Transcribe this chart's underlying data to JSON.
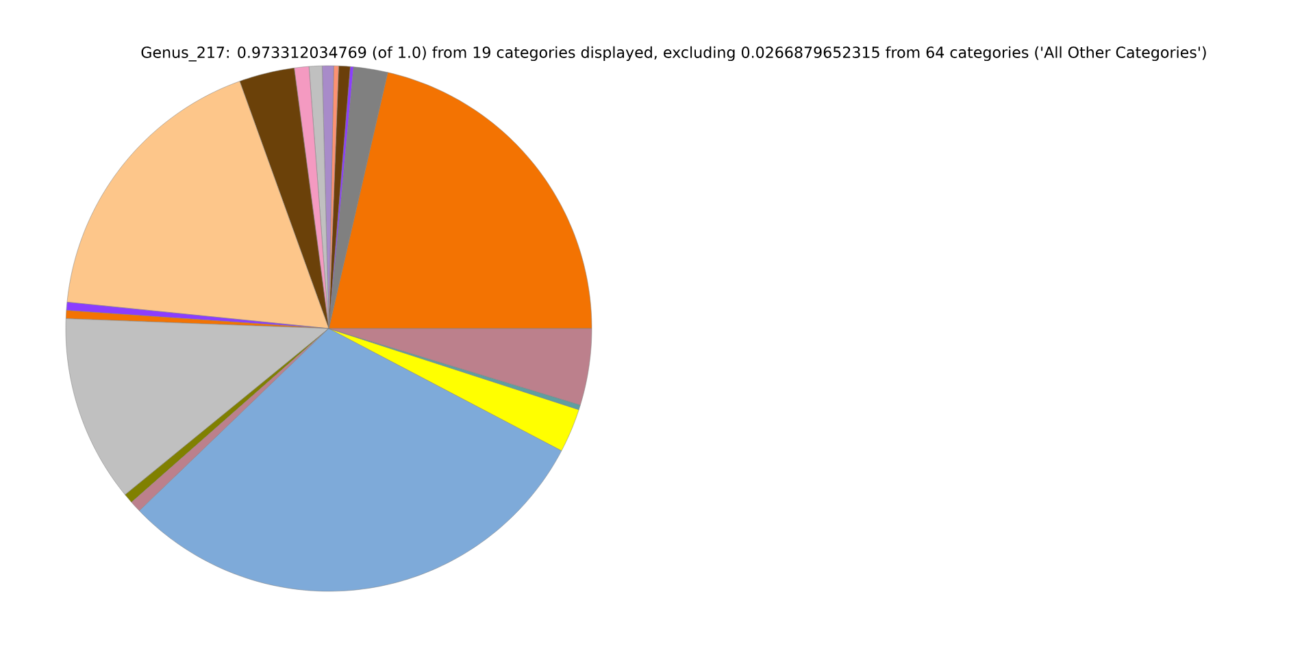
{
  "chart_data": {
    "type": "pie",
    "title": "Genus_217: 0.973312034769 (of 1.0) from 19 categories displayed, excluding 0.0266879652315 from 64 categories ('All Other Categories')",
    "categories": [
      null,
      null,
      null,
      null,
      null,
      null,
      null,
      null,
      null,
      null,
      null,
      null,
      null,
      null,
      null,
      null,
      null,
      null,
      null
    ],
    "values": [
      21.4,
      2.1,
      0.2,
      0.7,
      0.3,
      0.7,
      0.8,
      0.9,
      3.4,
      17.9,
      0.5,
      0.5,
      11.5,
      0.6,
      0.7,
      30.1,
      2.7,
      0.3,
      4.7
    ],
    "colors": [
      "#f37302",
      "#808080",
      "#8b3dff",
      "#6b3f0a",
      "#fc9272",
      "#a88bc9",
      "#c0c0c0",
      "#f49ac1",
      "#6b4109",
      "#fdc68a",
      "#8b3dff",
      "#f37302",
      "#c0c0c0",
      "#808000",
      "#bc808c",
      "#7eaad9",
      "#ffff00",
      "#5f9ea0",
      "#bc808c"
    ]
  }
}
